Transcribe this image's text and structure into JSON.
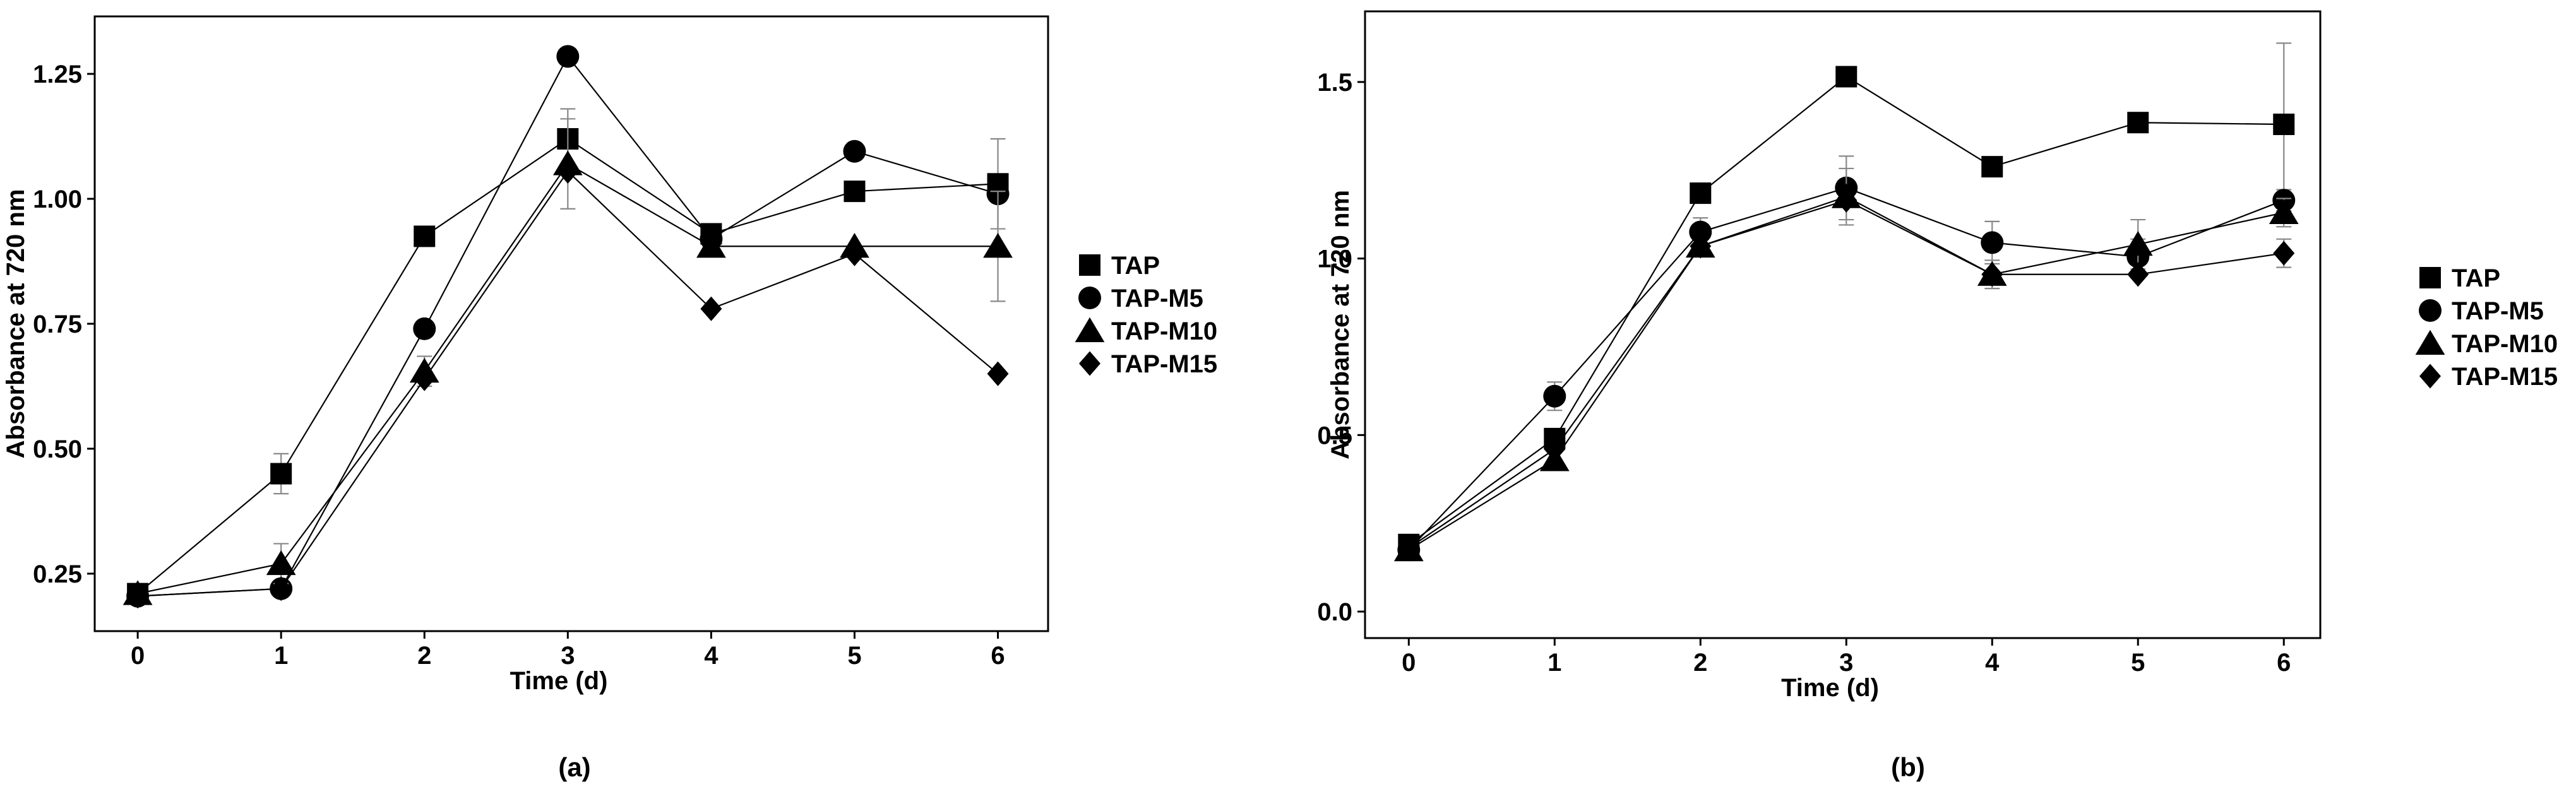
{
  "chart_data": [
    {
      "panel": "(a)",
      "type": "line",
      "xlabel": "Time (d)",
      "ylabel": "Absorbance at 720 nm",
      "xlim": [
        -0.3,
        6.35
      ],
      "ylim": [
        0.135,
        1.365
      ],
      "xticks": [
        "0",
        "1",
        "2",
        "3",
        "4",
        "5",
        "6"
      ],
      "yticks": [
        "0.25",
        "0.50",
        "0.75",
        "1.00",
        "1.25"
      ],
      "x": [
        0,
        1,
        2,
        3,
        4,
        5,
        6
      ],
      "series": [
        {
          "name": "TAP",
          "marker": "square",
          "values": [
            0.21,
            0.45,
            0.925,
            1.12,
            0.93,
            1.015,
            1.03
          ],
          "errors": [
            0.01,
            0.04,
            0.01,
            0.06,
            0.01,
            0.01,
            0.09
          ]
        },
        {
          "name": "TAP-M5",
          "marker": "circle",
          "values": [
            0.205,
            0.22,
            0.74,
            1.285,
            0.92,
            1.095,
            1.01
          ],
          "errors": [
            0.01,
            0.01,
            0.01,
            0.01,
            0.01,
            0.01,
            0.01
          ]
        },
        {
          "name": "TAP-M10",
          "marker": "triangle",
          "values": [
            0.21,
            0.27,
            0.655,
            1.07,
            0.905,
            0.905,
            0.905
          ],
          "errors": [
            0.01,
            0.04,
            0.03,
            0.09,
            0.01,
            0.01,
            0.11
          ]
        },
        {
          "name": "TAP-M15",
          "marker": "diamond",
          "values": [
            0.205,
            0.22,
            0.64,
            1.055,
            0.78,
            0.89,
            0.65
          ],
          "errors": [
            0.01,
            0.01,
            0.01,
            0.01,
            0.01,
            0.01,
            0.01
          ]
        }
      ]
    },
    {
      "panel": "(b)",
      "type": "line",
      "xlabel": "Time (d)",
      "ylabel": "Absorbance at 720 nm",
      "xlim": [
        -0.3,
        6.25
      ],
      "ylim": [
        -0.075,
        1.7
      ],
      "xticks": [
        "0",
        "1",
        "2",
        "3",
        "4",
        "5",
        "6"
      ],
      "yticks": [
        "0.0",
        "0.5",
        "1.0",
        "1.5"
      ],
      "x": [
        0,
        1,
        2,
        3,
        4,
        5,
        6
      ],
      "series": [
        {
          "name": "TAP",
          "marker": "square",
          "values": [
            0.19,
            0.49,
            1.185,
            1.515,
            1.26,
            1.385,
            1.38
          ],
          "errors": [
            0.01,
            0.01,
            0.01,
            0.01,
            0.01,
            0.01,
            0.23
          ]
        },
        {
          "name": "TAP-M5",
          "marker": "circle",
          "values": [
            0.175,
            0.61,
            1.075,
            1.2,
            1.045,
            1.005,
            1.165
          ],
          "errors": [
            0.01,
            0.04,
            0.04,
            0.09,
            0.06,
            0.05,
            0.03
          ]
        },
        {
          "name": "TAP-M10",
          "marker": "triangle",
          "values": [
            0.175,
            0.43,
            1.035,
            1.175,
            0.955,
            1.04,
            1.13
          ],
          "errors": [
            0.01,
            0.01,
            0.01,
            0.08,
            0.04,
            0.07,
            0.04
          ]
        },
        {
          "name": "TAP-M15",
          "marker": "diamond",
          "values": [
            0.18,
            0.46,
            1.035,
            1.165,
            0.955,
            0.955,
            1.015
          ],
          "errors": [
            0.01,
            0.01,
            0.01,
            0.01,
            0.01,
            0.01,
            0.04
          ]
        }
      ]
    }
  ],
  "legend": [
    "TAP",
    "TAP-M5",
    "TAP-M10",
    "TAP-M15"
  ]
}
